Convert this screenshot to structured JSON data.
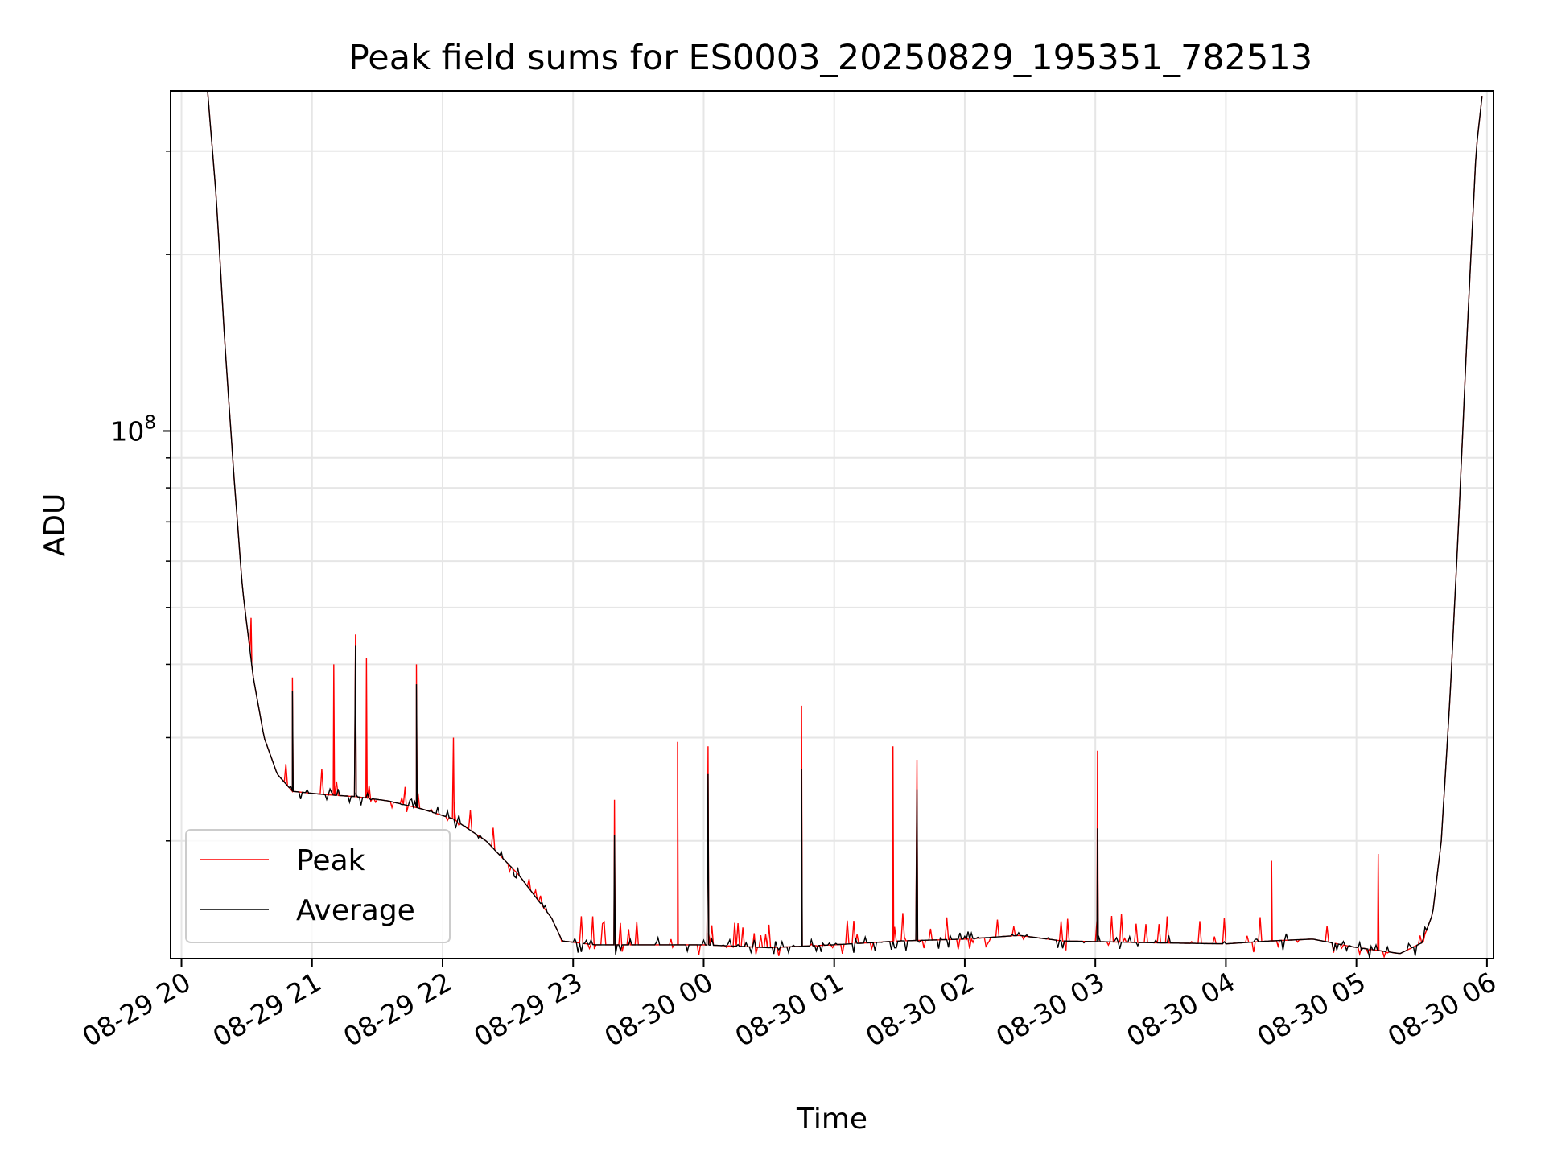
{
  "chart_data": {
    "type": "line",
    "title": "Peak field sums for ES0003_20250829_195351_782513",
    "xlabel": "Time",
    "ylabel": "ADU",
    "yscale": "log",
    "xlim": [
      "2025-08-29 19:55",
      "2025-08-30 06:03"
    ],
    "ylim": [
      12600000,
      380000000
    ],
    "x_ticks": [
      "08-29 20",
      "08-29 21",
      "08-29 22",
      "08-29 23",
      "08-30 00",
      "08-30 01",
      "08-30 02",
      "08-30 03",
      "08-30 04",
      "08-30 05",
      "08-30 06"
    ],
    "y_major_tick": {
      "value": 100000000,
      "base": "10",
      "exponent": "8"
    },
    "grid": true,
    "legend_position": "lower-left",
    "series": [
      {
        "name": "Peak",
        "color": "#ff0000",
        "spikes": [
          {
            "t": "2025-08-29 20:32",
            "y": 48000000
          },
          {
            "t": "2025-08-29 20:51",
            "y": 38000000
          },
          {
            "t": "2025-08-29 21:10",
            "y": 40000000
          },
          {
            "t": "2025-08-29 21:20",
            "y": 45000000
          },
          {
            "t": "2025-08-29 21:25",
            "y": 41000000
          },
          {
            "t": "2025-08-29 21:48",
            "y": 40000000
          },
          {
            "t": "2025-08-29 22:05",
            "y": 30000000
          },
          {
            "t": "2025-08-29 23:19",
            "y": 23500000
          },
          {
            "t": "2025-08-29 23:48",
            "y": 29500000
          },
          {
            "t": "2025-08-30 00:02",
            "y": 29000000
          },
          {
            "t": "2025-08-30 00:45",
            "y": 34000000
          },
          {
            "t": "2025-08-30 01:27",
            "y": 29000000
          },
          {
            "t": "2025-08-30 01:38",
            "y": 27500000
          },
          {
            "t": "2025-08-30 03:01",
            "y": 28500000
          },
          {
            "t": "2025-08-30 04:21",
            "y": 18500000
          },
          {
            "t": "2025-08-30 05:10",
            "y": 19000000
          }
        ]
      },
      {
        "name": "Average",
        "color": "#000000",
        "points": [
          {
            "t": "2025-08-29 20:12",
            "y": 380000000
          },
          {
            "t": "2025-08-29 20:16",
            "y": 250000000
          },
          {
            "t": "2025-08-29 20:20",
            "y": 140000000
          },
          {
            "t": "2025-08-29 20:24",
            "y": 85000000
          },
          {
            "t": "2025-08-29 20:28",
            "y": 54000000
          },
          {
            "t": "2025-08-29 20:33",
            "y": 38000000
          },
          {
            "t": "2025-08-29 20:38",
            "y": 30000000
          },
          {
            "t": "2025-08-29 20:44",
            "y": 26000000
          },
          {
            "t": "2025-08-29 20:51",
            "y": 24300000
          },
          {
            "t": "2025-08-29 21:05",
            "y": 24000000
          },
          {
            "t": "2025-08-29 21:20",
            "y": 23800000
          },
          {
            "t": "2025-08-29 21:35",
            "y": 23400000
          },
          {
            "t": "2025-08-29 21:50",
            "y": 22700000
          },
          {
            "t": "2025-08-29 22:05",
            "y": 21800000
          },
          {
            "t": "2025-08-29 22:20",
            "y": 20000000
          },
          {
            "t": "2025-08-29 22:35",
            "y": 17500000
          },
          {
            "t": "2025-08-29 22:50",
            "y": 14800000
          },
          {
            "t": "2025-08-29 22:55",
            "y": 13500000
          },
          {
            "t": "2025-08-29 23:10",
            "y": 13300000
          },
          {
            "t": "2025-08-30 00:00",
            "y": 13300000
          },
          {
            "t": "2025-08-30 00:30",
            "y": 13150000
          },
          {
            "t": "2025-08-30 01:00",
            "y": 13300000
          },
          {
            "t": "2025-08-30 01:30",
            "y": 13500000
          },
          {
            "t": "2025-08-30 02:00",
            "y": 13600000
          },
          {
            "t": "2025-08-30 02:25",
            "y": 13800000
          },
          {
            "t": "2025-08-30 02:45",
            "y": 13500000
          },
          {
            "t": "2025-08-30 03:30",
            "y": 13400000
          },
          {
            "t": "2025-08-30 04:00",
            "y": 13350000
          },
          {
            "t": "2025-08-30 04:20",
            "y": 13500000
          },
          {
            "t": "2025-08-30 04:40",
            "y": 13600000
          },
          {
            "t": "2025-08-30 04:58",
            "y": 13200000
          },
          {
            "t": "2025-08-30 05:20",
            "y": 12850000
          },
          {
            "t": "2025-08-30 05:30",
            "y": 13400000
          },
          {
            "t": "2025-08-30 05:35",
            "y": 15000000
          },
          {
            "t": "2025-08-30 05:39",
            "y": 20000000
          },
          {
            "t": "2025-08-30 05:43",
            "y": 35000000
          },
          {
            "t": "2025-08-30 05:47",
            "y": 70000000
          },
          {
            "t": "2025-08-30 05:51",
            "y": 150000000
          },
          {
            "t": "2025-08-30 05:55",
            "y": 300000000
          },
          {
            "t": "2025-08-30 05:58",
            "y": 380000000
          }
        ],
        "spikes": [
          {
            "t": "2025-08-29 20:51",
            "y": 36000000
          },
          {
            "t": "2025-08-29 21:20",
            "y": 43000000
          },
          {
            "t": "2025-08-29 21:48",
            "y": 37000000
          },
          {
            "t": "2025-08-29 23:19",
            "y": 20500000
          },
          {
            "t": "2025-08-30 00:02",
            "y": 26000000
          },
          {
            "t": "2025-08-30 00:45",
            "y": 26500000
          },
          {
            "t": "2025-08-30 01:38",
            "y": 24500000
          },
          {
            "t": "2025-08-30 03:01",
            "y": 21000000
          }
        ]
      }
    ]
  }
}
